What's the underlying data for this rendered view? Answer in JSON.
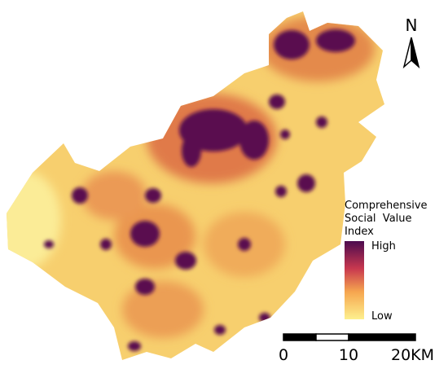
{
  "north": "N",
  "legend": {
    "title_lines": [
      "Comprehensive",
      "Social  Value",
      "Index"
    ],
    "high": "High",
    "low": "Low"
  },
  "scale_bar": {
    "labels": [
      "0",
      "10",
      "20KM"
    ]
  }
}
